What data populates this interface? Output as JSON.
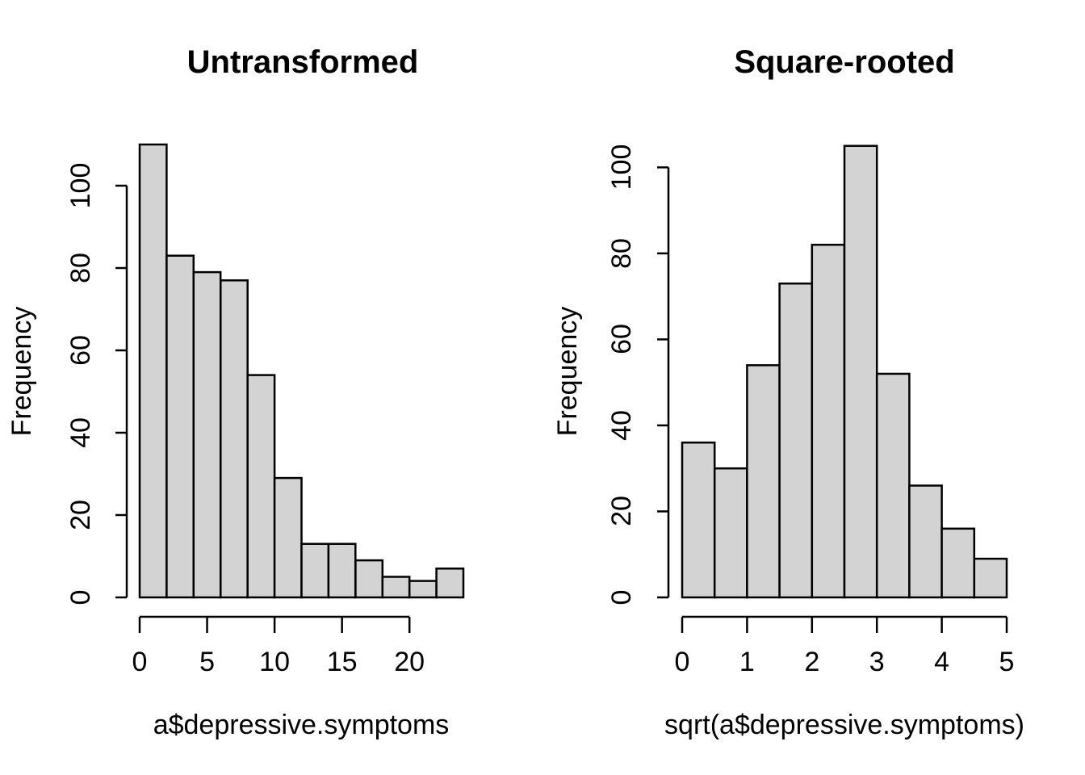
{
  "page": {
    "background": "#ffffff",
    "text_color": "#000000"
  },
  "chart_data": [
    {
      "type": "bar",
      "subtype": "histogram",
      "title": "Untransformed",
      "xlabel": "a$depressive.symptoms",
      "ylabel": "Frequency",
      "bin_edges": [
        0,
        2,
        4,
        6,
        8,
        10,
        12,
        14,
        16,
        18,
        20,
        22,
        24
      ],
      "values": [
        110,
        83,
        79,
        77,
        54,
        29,
        13,
        13,
        9,
        5,
        4,
        7
      ],
      "xticks": [
        0,
        5,
        10,
        15,
        20
      ],
      "yticks": [
        0,
        20,
        40,
        60,
        80,
        100
      ],
      "xlim": [
        0,
        24
      ],
      "ylim": [
        0,
        110
      ],
      "grid": false,
      "legend": false,
      "bar_fill": "#d3d3d3",
      "bar_stroke": "#000000",
      "axis_color": "#000000"
    },
    {
      "type": "bar",
      "subtype": "histogram",
      "title": "Square-rooted",
      "xlabel": "sqrt(a$depressive.symptoms)",
      "ylabel": "Frequency",
      "bin_edges": [
        0,
        0.5,
        1,
        1.5,
        2,
        2.5,
        3,
        3.5,
        4,
        4.5,
        5
      ],
      "values": [
        36,
        30,
        54,
        73,
        82,
        105,
        52,
        26,
        16,
        9
      ],
      "xticks": [
        0,
        1,
        2,
        3,
        4,
        5
      ],
      "yticks": [
        0,
        20,
        40,
        60,
        80,
        100
      ],
      "xlim": [
        0,
        5
      ],
      "ylim": [
        0,
        105
      ],
      "grid": false,
      "legend": false,
      "bar_fill": "#d3d3d3",
      "bar_stroke": "#000000",
      "axis_color": "#000000"
    }
  ]
}
